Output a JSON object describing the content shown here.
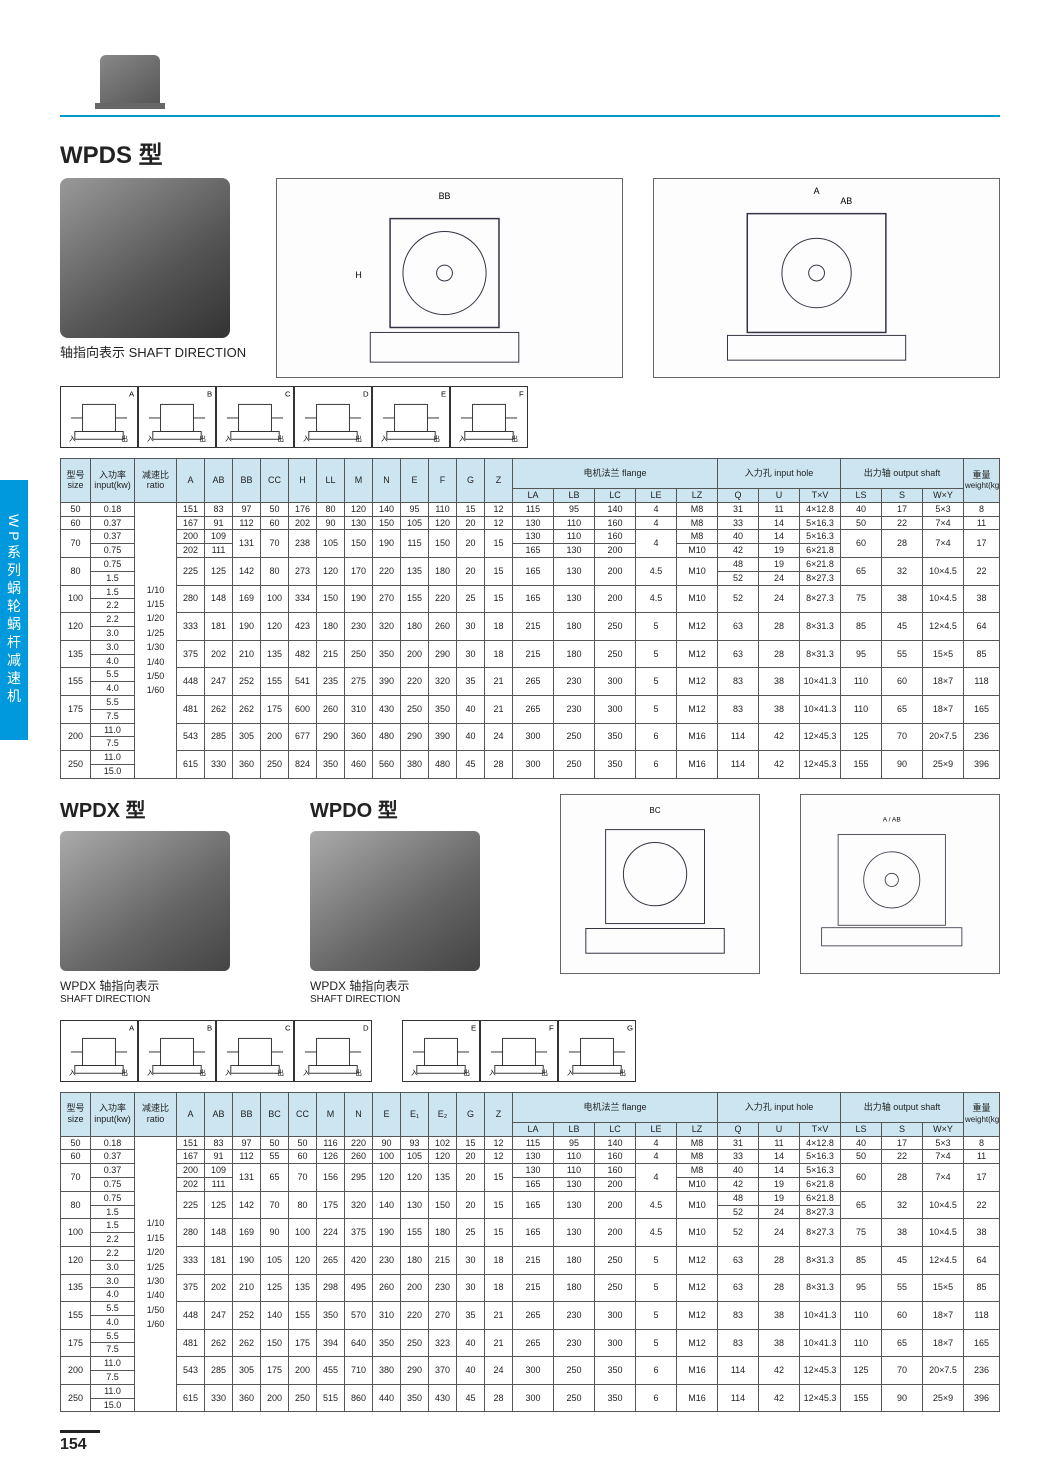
{
  "pageNumber": "154",
  "sideTab": "WP系列蜗轮蜗杆减速机",
  "section1": {
    "title": "WPDS  型",
    "shaftLabel": "轴指向表示  SHAFT DIRECTION",
    "dirLabels": [
      "A",
      "B",
      "C",
      "D",
      "E",
      "F"
    ]
  },
  "section2": {
    "titleL": "WPDX  型",
    "titleR": "WPDO  型",
    "subL": "WPDX 轴指向表示",
    "subR": "WPDX 轴指向表示",
    "shaftEn": "SHAFT DIRECTION",
    "dirLabelsL": [
      "A",
      "B",
      "C",
      "D"
    ],
    "dirLabelsR": [
      "E",
      "F",
      "G"
    ]
  },
  "headerGroups": {
    "flange": "电机法兰 flange",
    "inputHole": "入力孔 input hole",
    "outputShaft": "出力轴 output shaft",
    "weight": "重量",
    "sizeCn": "型号",
    "sizeEn": "size",
    "powerCn": "入功率",
    "powerEn": "input(kw)",
    "ratioCn": "减速比",
    "ratioEn": "ratio"
  },
  "colors": {
    "headerBg": "#cce5f0",
    "rule": "#0099cc",
    "tab": "#0099dd"
  },
  "table1": {
    "cols": [
      "A",
      "AB",
      "BB",
      "CC",
      "H",
      "LL",
      "M",
      "N",
      "E",
      "F",
      "G",
      "Z",
      "LA",
      "LB",
      "LC",
      "LE",
      "LZ",
      "Q",
      "U",
      "T×V",
      "LS",
      "S",
      "W×Y",
      "Weight\n(kg)"
    ],
    "ratio": "1/10\n1/15\n1/20\n1/25\n1/30\n1/40\n1/50\n1/60",
    "rows": [
      {
        "size": "50",
        "kw": [
          "0.18"
        ],
        "v": [
          "151",
          "83",
          "97",
          "50",
          "176",
          "80",
          "120",
          "140",
          "95",
          "110",
          "15",
          "12",
          "115",
          "95",
          "140",
          "4",
          "M8",
          "31",
          "11",
          "4×12.8",
          "40",
          "17",
          "5×3",
          "8"
        ]
      },
      {
        "size": "60",
        "kw": [
          "0.37"
        ],
        "v": [
          "167",
          "91",
          "112",
          "60",
          "202",
          "90",
          "130",
          "150",
          "105",
          "120",
          "20",
          "12",
          "130",
          "110",
          "160",
          "4",
          "M8",
          "33",
          "14",
          "5×16.3",
          "50",
          "22",
          "7×4",
          "11"
        ]
      },
      {
        "size": "70",
        "kw": [
          "0.37",
          "0.75"
        ],
        "v": [
          "200/202",
          "109/111",
          "131",
          "70",
          "238",
          "105",
          "150",
          "190",
          "115",
          "150",
          "20",
          "15",
          "130/165",
          "110/130",
          "160/200",
          "4",
          "M8/M10",
          "40/42",
          "14/19",
          "5×16.3/6×21.8",
          "60",
          "28",
          "7×4",
          "17"
        ]
      },
      {
        "size": "80",
        "kw": [
          "0.75",
          "1.5"
        ],
        "v": [
          "225",
          "125",
          "142",
          "80",
          "273",
          "120",
          "170",
          "220",
          "135",
          "180",
          "20",
          "15",
          "165",
          "130",
          "200",
          "4.5",
          "M10",
          "48/52",
          "19/24",
          "6×21.8/8×27.3",
          "65",
          "32",
          "10×4.5",
          "22"
        ]
      },
      {
        "size": "100",
        "kw": [
          "1.5",
          "2.2"
        ],
        "v": [
          "280",
          "148",
          "169",
          "100",
          "334",
          "150",
          "190",
          "270",
          "155",
          "220",
          "25",
          "15",
          "165",
          "130",
          "200",
          "4.5",
          "M10",
          "52",
          "24",
          "8×27.3",
          "75",
          "38",
          "10×4.5",
          "38"
        ]
      },
      {
        "size": "120",
        "kw": [
          "2.2",
          "3.0"
        ],
        "v": [
          "333",
          "181",
          "190",
          "120",
          "423",
          "180",
          "230",
          "320",
          "180",
          "260",
          "30",
          "18",
          "215",
          "180",
          "250",
          "5",
          "M12",
          "63",
          "28",
          "8×31.3",
          "85",
          "45",
          "12×4.5",
          "64"
        ]
      },
      {
        "size": "135",
        "kw": [
          "3.0",
          "4.0"
        ],
        "v": [
          "375",
          "202",
          "210",
          "135",
          "482",
          "215",
          "250",
          "350",
          "200",
          "290",
          "30",
          "18",
          "215",
          "180",
          "250",
          "5",
          "M12",
          "63",
          "28",
          "8×31.3",
          "95",
          "55",
          "15×5",
          "85"
        ]
      },
      {
        "size": "155",
        "kw": [
          "5.5",
          "4.0"
        ],
        "v": [
          "448",
          "247",
          "252",
          "155",
          "541",
          "235",
          "275",
          "390",
          "220",
          "320",
          "35",
          "21",
          "265",
          "230",
          "300",
          "5",
          "M12",
          "83",
          "38",
          "10×41.3",
          "110",
          "60",
          "18×7",
          "118"
        ]
      },
      {
        "size": "175",
        "kw": [
          "5.5",
          "7.5"
        ],
        "v": [
          "481",
          "262",
          "262",
          "175",
          "600",
          "260",
          "310",
          "430",
          "250",
          "350",
          "40",
          "21",
          "265",
          "230",
          "300",
          "5",
          "M12",
          "83",
          "38",
          "10×41.3",
          "110",
          "65",
          "18×7",
          "165"
        ]
      },
      {
        "size": "200",
        "kw": [
          "11.0",
          "7.5"
        ],
        "v": [
          "543",
          "285",
          "305",
          "200",
          "677",
          "290",
          "360",
          "480",
          "290",
          "390",
          "40",
          "24",
          "300",
          "250",
          "350",
          "6",
          "M16",
          "114",
          "42",
          "12×45.3",
          "125",
          "70",
          "20×7.5",
          "236"
        ]
      },
      {
        "size": "250",
        "kw": [
          "11.0",
          "15.0"
        ],
        "v": [
          "615",
          "330",
          "360",
          "250",
          "824",
          "350",
          "460",
          "560",
          "380",
          "480",
          "45",
          "28",
          "300",
          "250",
          "350",
          "6",
          "M16",
          "114",
          "42",
          "12×45.3",
          "155",
          "90",
          "25×9",
          "396"
        ]
      }
    ]
  },
  "table2": {
    "cols": [
      "A",
      "AB",
      "BB",
      "BC",
      "CC",
      "M",
      "N",
      "E",
      "E₁",
      "E₂",
      "G",
      "Z",
      "LA",
      "LB",
      "LC",
      "LE",
      "LZ",
      "Q",
      "U",
      "T×V",
      "LS",
      "S",
      "W×Y",
      "Weight\n(kg)"
    ],
    "ratio": "1/10\n1/15\n1/20\n1/25\n1/30\n1/40\n1/50\n1/60",
    "rows": [
      {
        "size": "50",
        "kw": [
          "0.18"
        ],
        "v": [
          "151",
          "83",
          "97",
          "50",
          "50",
          "116",
          "220",
          "90",
          "93",
          "102",
          "15",
          "12",
          "115",
          "95",
          "140",
          "4",
          "M8",
          "31",
          "11",
          "4×12.8",
          "40",
          "17",
          "5×3",
          "8"
        ]
      },
      {
        "size": "60",
        "kw": [
          "0.37"
        ],
        "v": [
          "167",
          "91",
          "112",
          "55",
          "60",
          "126",
          "260",
          "100",
          "105",
          "120",
          "20",
          "12",
          "130",
          "110",
          "160",
          "4",
          "M8",
          "33",
          "14",
          "5×16.3",
          "50",
          "22",
          "7×4",
          "11"
        ]
      },
      {
        "size": "70",
        "kw": [
          "0.37",
          "0.75"
        ],
        "v": [
          "200/202",
          "109/111",
          "131",
          "65",
          "70",
          "156",
          "295",
          "120",
          "120",
          "135",
          "20",
          "15",
          "130/165",
          "110/130",
          "160/200",
          "4",
          "M8/M10",
          "40/42",
          "14/19",
          "5×16.3/6×21.8",
          "60",
          "28",
          "7×4",
          "17"
        ]
      },
      {
        "size": "80",
        "kw": [
          "0.75",
          "1.5"
        ],
        "v": [
          "225",
          "125",
          "142",
          "70",
          "80",
          "175",
          "320",
          "140",
          "130",
          "150",
          "20",
          "15",
          "165",
          "130",
          "200",
          "4.5",
          "M10",
          "48/52",
          "19/24",
          "6×21.8/8×27.3",
          "65",
          "32",
          "10×4.5",
          "22"
        ]
      },
      {
        "size": "100",
        "kw": [
          "1.5",
          "2.2"
        ],
        "v": [
          "280",
          "148",
          "169",
          "90",
          "100",
          "224",
          "375",
          "190",
          "155",
          "180",
          "25",
          "15",
          "165",
          "130",
          "200",
          "4.5",
          "M10",
          "52",
          "24",
          "8×27.3",
          "75",
          "38",
          "10×4.5",
          "38"
        ]
      },
      {
        "size": "120",
        "kw": [
          "2.2",
          "3.0"
        ],
        "v": [
          "333",
          "181",
          "190",
          "105",
          "120",
          "265",
          "420",
          "230",
          "180",
          "215",
          "30",
          "18",
          "215",
          "180",
          "250",
          "5",
          "M12",
          "63",
          "28",
          "8×31.3",
          "85",
          "45",
          "12×4.5",
          "64"
        ]
      },
      {
        "size": "135",
        "kw": [
          "3.0",
          "4.0"
        ],
        "v": [
          "375",
          "202",
          "210",
          "125",
          "135",
          "298",
          "495",
          "260",
          "200",
          "230",
          "30",
          "18",
          "215",
          "180",
          "250",
          "5",
          "M12",
          "63",
          "28",
          "8×31.3",
          "95",
          "55",
          "15×5",
          "85"
        ]
      },
      {
        "size": "155",
        "kw": [
          "5.5",
          "4.0"
        ],
        "v": [
          "448",
          "247",
          "252",
          "140",
          "155",
          "350",
          "570",
          "310",
          "220",
          "270",
          "35",
          "21",
          "265",
          "230",
          "300",
          "5",
          "M12",
          "83",
          "38",
          "10×41.3",
          "110",
          "60",
          "18×7",
          "118"
        ]
      },
      {
        "size": "175",
        "kw": [
          "5.5",
          "7.5"
        ],
        "v": [
          "481",
          "262",
          "262",
          "150",
          "175",
          "394",
          "640",
          "350",
          "250",
          "323",
          "40",
          "21",
          "265",
          "230",
          "300",
          "5",
          "M12",
          "83",
          "38",
          "10×41.3",
          "110",
          "65",
          "18×7",
          "165"
        ]
      },
      {
        "size": "200",
        "kw": [
          "11.0",
          "7.5"
        ],
        "v": [
          "543",
          "285",
          "305",
          "175",
          "200",
          "455",
          "710",
          "380",
          "290",
          "370",
          "40",
          "24",
          "300",
          "250",
          "350",
          "6",
          "M16",
          "114",
          "42",
          "12×45.3",
          "125",
          "70",
          "20×7.5",
          "236"
        ]
      },
      {
        "size": "250",
        "kw": [
          "11.0",
          "15.0"
        ],
        "v": [
          "615",
          "330",
          "360",
          "200",
          "250",
          "515",
          "860",
          "440",
          "350",
          "430",
          "45",
          "28",
          "300",
          "250",
          "350",
          "6",
          "M16",
          "114",
          "42",
          "12×45.3",
          "155",
          "90",
          "25×9",
          "396"
        ]
      }
    ]
  }
}
